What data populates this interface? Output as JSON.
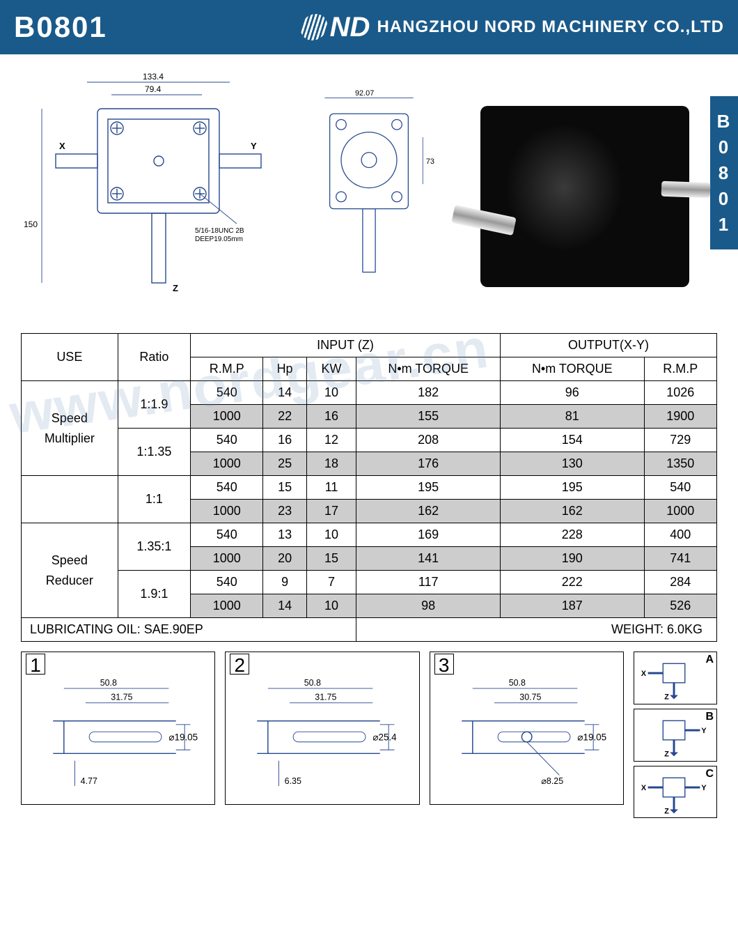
{
  "header": {
    "model": "B0801",
    "logo_text": "ND",
    "company": "HANGZHOU NORD MACHINERY CO.,LTD"
  },
  "side_tab": "B0801",
  "watermark": "www.nordgear.cn",
  "drawing": {
    "front": {
      "width_overall": "133.4",
      "width_inner": "79.4",
      "height_overall": "150",
      "axis_x": "X",
      "axis_y": "Y",
      "axis_z": "Z",
      "thread_note1": "5/16-18UNC 2B",
      "thread_note2": "DEEP19.05mm"
    },
    "side": {
      "width": "92.07",
      "height": "73"
    }
  },
  "table": {
    "header": {
      "use": "USE",
      "ratio": "Ratio",
      "input": "INPUT (Z)",
      "output": "OUTPUT(X-Y)",
      "rmp": "R.M.P",
      "hp": "Hp",
      "kw": "KW",
      "nm_torque": "N•m TORQUE",
      "out_nm": "N•m TORQUE",
      "out_rmp": "R.M.P"
    },
    "groups": [
      {
        "use": "Speed Multiplier",
        "ratios": [
          {
            "ratio": "1:1.9",
            "rows": [
              {
                "rmp": "540",
                "hp": "14",
                "kw": "10",
                "nm": "182",
                "onm": "96",
                "ormp": "1026",
                "shade": false
              },
              {
                "rmp": "1000",
                "hp": "22",
                "kw": "16",
                "nm": "155",
                "onm": "81",
                "ormp": "1900",
                "shade": true
              }
            ]
          },
          {
            "ratio": "1:1.35",
            "rows": [
              {
                "rmp": "540",
                "hp": "16",
                "kw": "12",
                "nm": "208",
                "onm": "154",
                "ormp": "729",
                "shade": false
              },
              {
                "rmp": "1000",
                "hp": "25",
                "kw": "18",
                "nm": "176",
                "onm": "130",
                "ormp": "1350",
                "shade": true
              }
            ]
          }
        ]
      },
      {
        "use": "",
        "ratios": [
          {
            "ratio": "1:1",
            "rows": [
              {
                "rmp": "540",
                "hp": "15",
                "kw": "11",
                "nm": "195",
                "onm": "195",
                "ormp": "540",
                "shade": false
              },
              {
                "rmp": "1000",
                "hp": "23",
                "kw": "17",
                "nm": "162",
                "onm": "162",
                "ormp": "1000",
                "shade": true
              }
            ]
          }
        ]
      },
      {
        "use": "Speed Reducer",
        "ratios": [
          {
            "ratio": "1.35:1",
            "rows": [
              {
                "rmp": "540",
                "hp": "13",
                "kw": "10",
                "nm": "169",
                "onm": "228",
                "ormp": "400",
                "shade": false
              },
              {
                "rmp": "1000",
                "hp": "20",
                "kw": "15",
                "nm": "141",
                "onm": "190",
                "ormp": "741",
                "shade": true
              }
            ]
          },
          {
            "ratio": "1.9:1",
            "rows": [
              {
                "rmp": "540",
                "hp": "9",
                "kw": "7",
                "nm": "117",
                "onm": "222",
                "ormp": "284",
                "shade": false
              },
              {
                "rmp": "1000",
                "hp": "14",
                "kw": "10",
                "nm": "98",
                "onm": "187",
                "ormp": "526",
                "shade": true
              }
            ]
          }
        ]
      }
    ],
    "footer": {
      "oil": "LUBRICATING OIL: SAE.90EP",
      "weight": "WEIGHT: 6.0KG"
    }
  },
  "shafts": [
    {
      "num": "1",
      "len": "50.8",
      "key": "31.75",
      "dia": "⌀19.05",
      "keyh": "4.77",
      "hole": ""
    },
    {
      "num": "2",
      "len": "50.8",
      "key": "31.75",
      "dia": "⌀25.4",
      "keyh": "6.35",
      "hole": ""
    },
    {
      "num": "3",
      "len": "50.8",
      "key": "30.75",
      "dia": "⌀19.05",
      "keyh": "",
      "hole": "⌀8.25"
    }
  ],
  "configs": [
    {
      "label": "A",
      "axes": "X Z"
    },
    {
      "label": "B",
      "axes": "Y Z"
    },
    {
      "label": "C",
      "axes": "X Y Z"
    }
  ],
  "colors": {
    "brand": "#1a5a8a",
    "line": "#26488f",
    "shade": "#cdcdcd"
  }
}
